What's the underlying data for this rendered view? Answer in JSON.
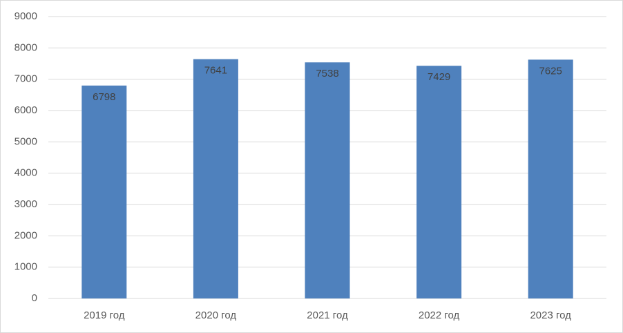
{
  "chart_data": {
    "type": "bar",
    "categories": [
      "2019 год",
      "2020 год",
      "2021 год",
      "2022 год",
      "2023 год"
    ],
    "values": [
      6798,
      7641,
      7538,
      7429,
      7625
    ],
    "color": "#4f81bd",
    "ylim": [
      0,
      9000
    ],
    "yticks": [
      0,
      1000,
      2000,
      3000,
      4000,
      5000,
      6000,
      7000,
      8000,
      9000
    ],
    "grid": true
  }
}
